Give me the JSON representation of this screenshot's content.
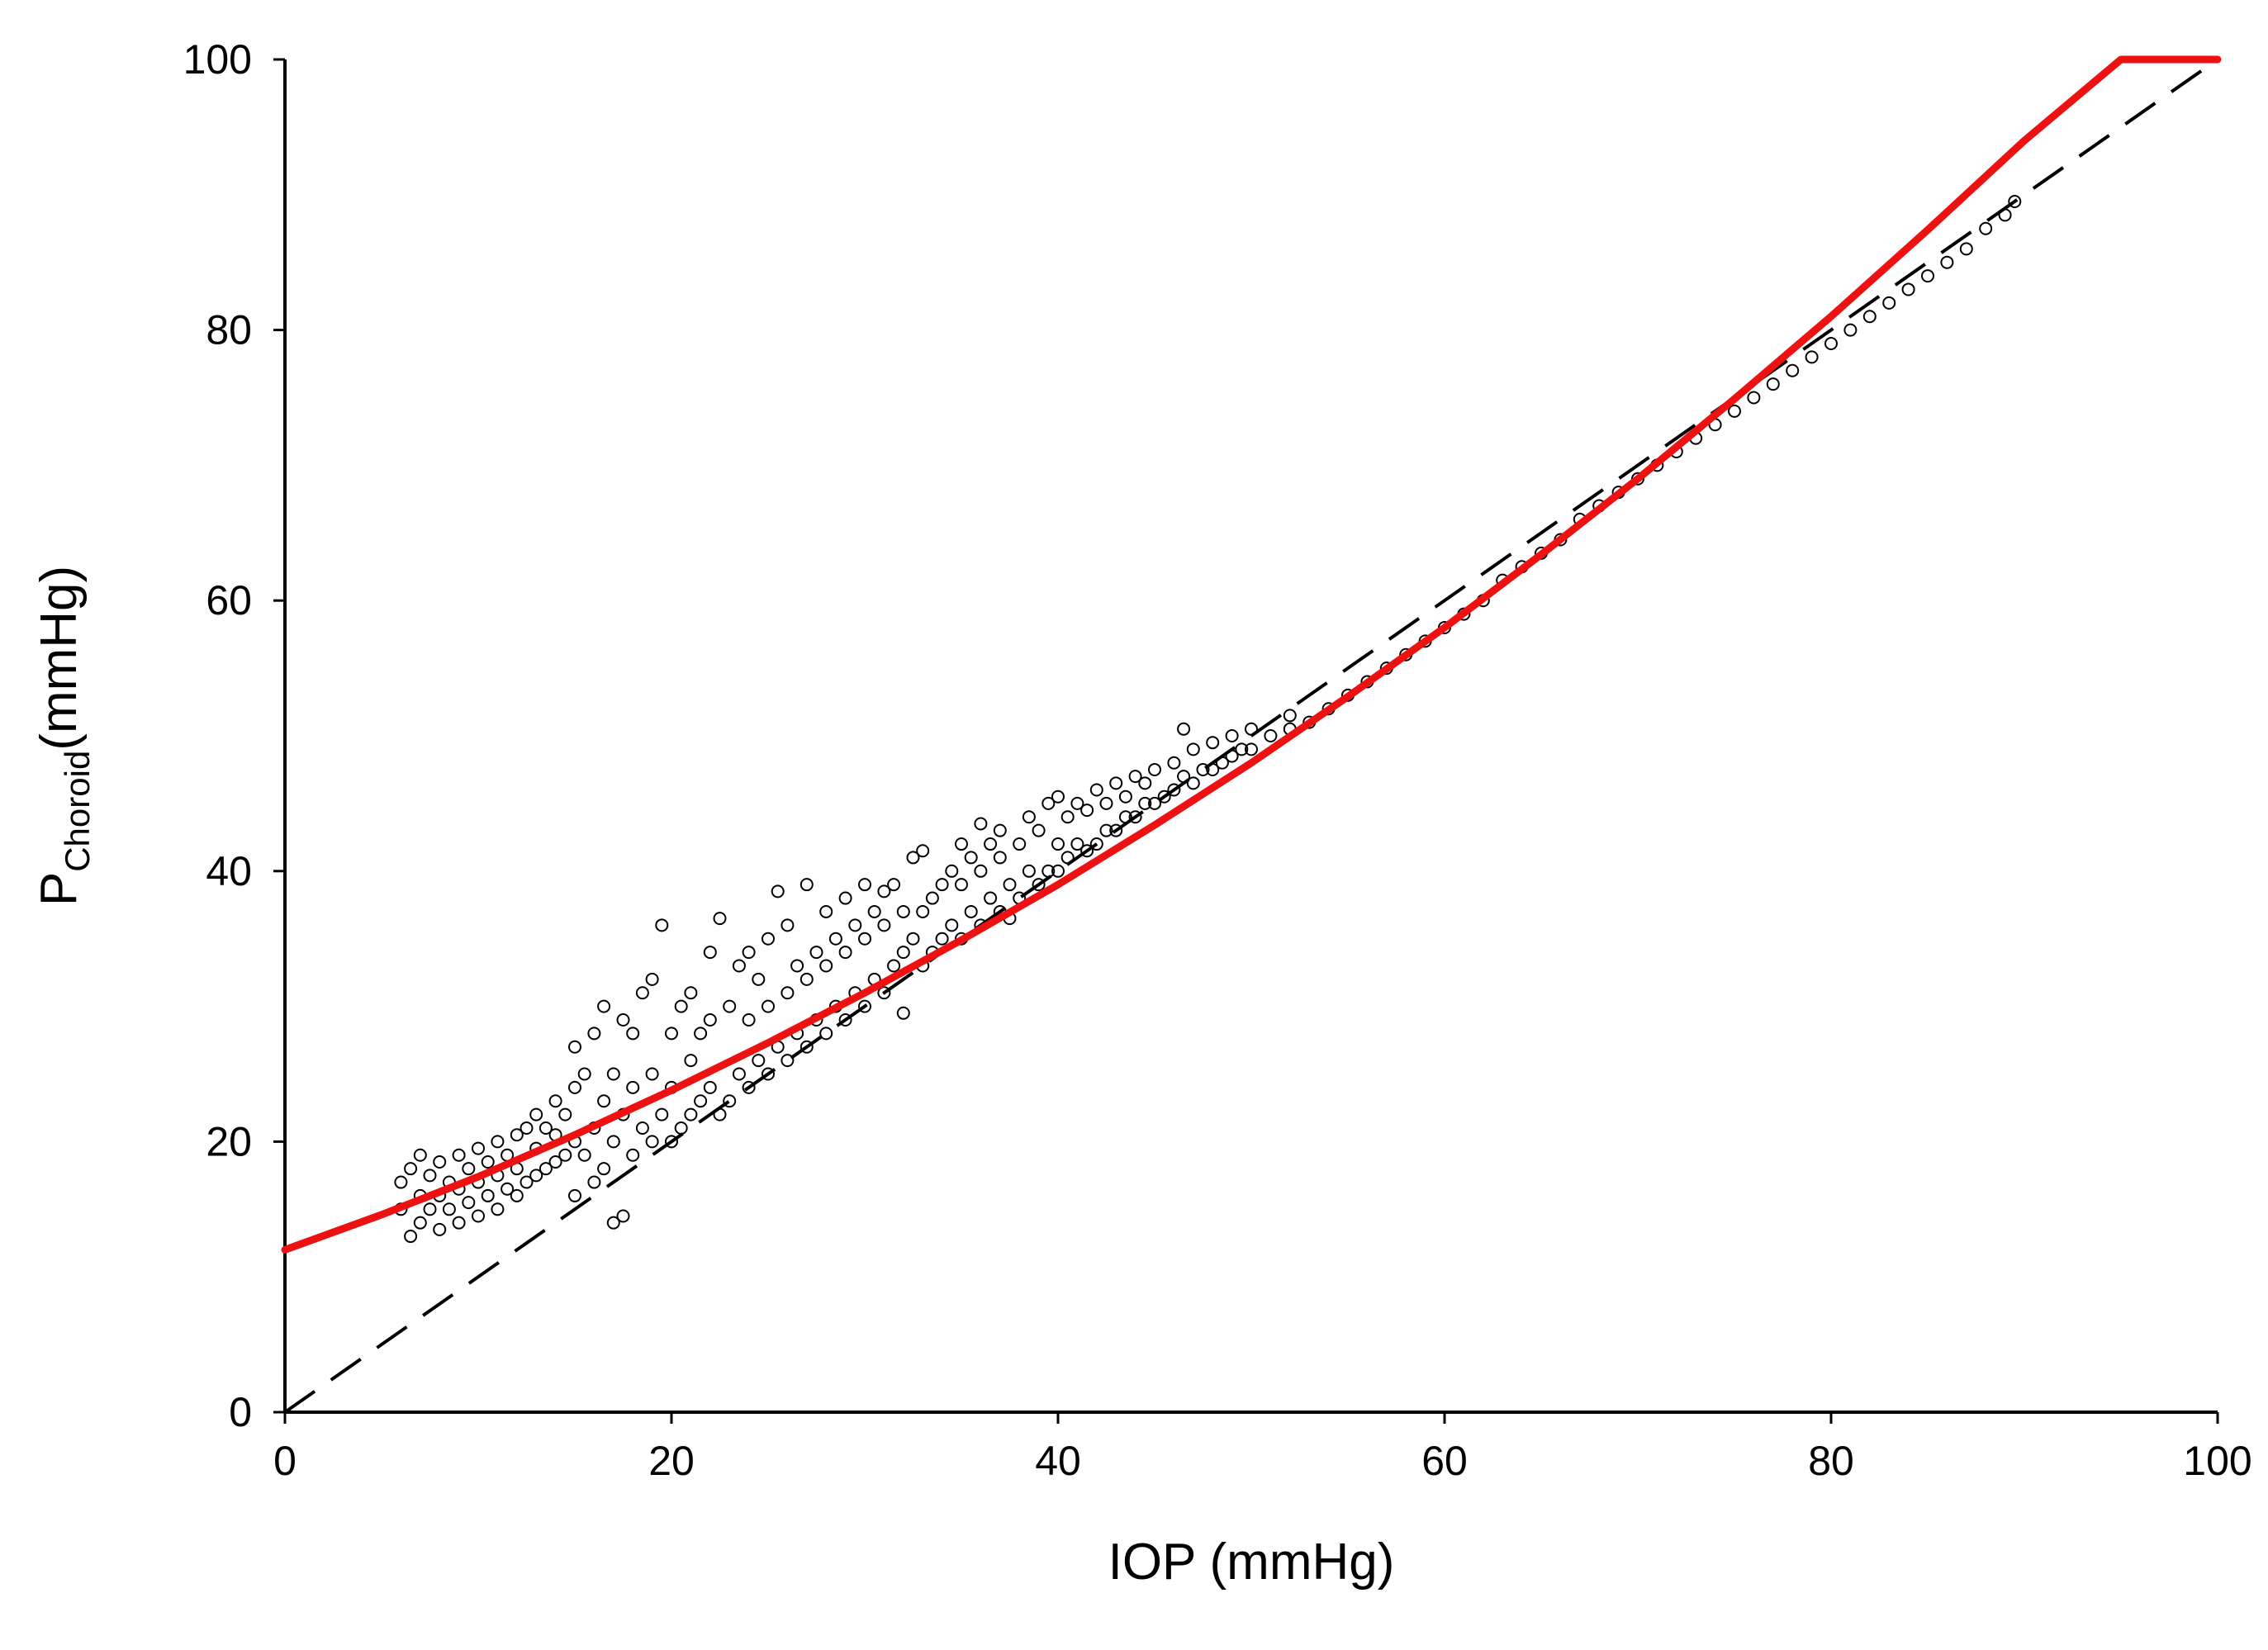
{
  "chart_data": {
    "type": "scatter",
    "title": "",
    "xlabel": "IOP (mmHg)",
    "ylabel": {
      "main": "P",
      "subscript": "Choroid",
      "suffix": "(mmHg)"
    },
    "xlim": [
      0,
      100
    ],
    "ylim": [
      0,
      100
    ],
    "x_ticks": [
      "0",
      "20",
      "40",
      "60",
      "80",
      "100"
    ],
    "y_ticks": [
      "0",
      "20",
      "40",
      "60",
      "80",
      "100"
    ],
    "grid": false,
    "legend": "none",
    "colors": {
      "scatter": "#000000",
      "fit_line": "#ee1111",
      "reference_line": "#000000"
    },
    "series": [
      {
        "kind": "scatter",
        "points": [
          [
            6,
            15
          ],
          [
            6,
            17
          ],
          [
            6.5,
            13
          ],
          [
            6.5,
            18
          ],
          [
            7,
            14
          ],
          [
            7,
            16
          ],
          [
            7,
            19
          ],
          [
            7.5,
            15
          ],
          [
            7.5,
            17.5
          ],
          [
            8,
            13.5
          ],
          [
            8,
            16
          ],
          [
            8,
            18.5
          ],
          [
            8.5,
            15
          ],
          [
            8.5,
            17
          ],
          [
            9,
            14
          ],
          [
            9,
            16.5
          ],
          [
            9,
            19
          ],
          [
            9.5,
            15.5
          ],
          [
            9.5,
            18
          ],
          [
            10,
            14.5
          ],
          [
            10,
            17
          ],
          [
            10,
            19.5
          ],
          [
            10.5,
            16
          ],
          [
            10.5,
            18.5
          ],
          [
            11,
            15
          ],
          [
            11,
            17.5
          ],
          [
            11,
            20
          ],
          [
            11.5,
            16.5
          ],
          [
            11.5,
            19
          ],
          [
            12,
            16
          ],
          [
            12,
            18
          ],
          [
            12,
            20.5
          ],
          [
            12.5,
            17
          ],
          [
            12.5,
            21
          ],
          [
            13,
            17.5
          ],
          [
            13,
            19.5
          ],
          [
            13,
            22
          ],
          [
            13.5,
            18
          ],
          [
            13.5,
            21
          ],
          [
            14,
            18.5
          ],
          [
            14,
            20.5
          ],
          [
            14,
            23
          ],
          [
            14.5,
            19
          ],
          [
            14.5,
            22
          ],
          [
            15,
            16
          ],
          [
            15,
            20
          ],
          [
            15,
            24
          ],
          [
            15,
            27
          ],
          [
            15.5,
            19
          ],
          [
            15.5,
            25
          ],
          [
            16,
            17
          ],
          [
            16,
            21
          ],
          [
            16,
            28
          ],
          [
            16.5,
            18
          ],
          [
            16.5,
            23
          ],
          [
            16.5,
            30
          ],
          [
            17,
            14
          ],
          [
            17,
            20
          ],
          [
            17,
            25
          ],
          [
            17.5,
            14.5
          ],
          [
            17.5,
            22
          ],
          [
            17.5,
            29
          ],
          [
            18,
            19
          ],
          [
            18,
            24
          ],
          [
            18,
            28
          ],
          [
            18.5,
            21
          ],
          [
            18.5,
            31
          ],
          [
            19,
            20
          ],
          [
            19,
            25
          ],
          [
            19,
            32
          ],
          [
            19.5,
            22
          ],
          [
            19.5,
            36
          ],
          [
            20,
            20
          ],
          [
            20,
            24
          ],
          [
            20,
            28
          ],
          [
            20.5,
            21
          ],
          [
            20.5,
            30
          ],
          [
            21,
            22
          ],
          [
            21,
            26
          ],
          [
            21,
            31
          ],
          [
            21.5,
            23
          ],
          [
            21.5,
            28
          ],
          [
            22,
            24
          ],
          [
            22,
            29
          ],
          [
            22,
            34
          ],
          [
            22.5,
            22
          ],
          [
            22.5,
            36.5
          ],
          [
            23,
            23
          ],
          [
            23,
            30
          ],
          [
            23.5,
            25
          ],
          [
            23.5,
            33
          ],
          [
            24,
            24
          ],
          [
            24,
            29
          ],
          [
            24,
            34
          ],
          [
            24.5,
            26
          ],
          [
            24.5,
            32
          ],
          [
            25,
            25
          ],
          [
            25,
            30
          ],
          [
            25,
            35
          ],
          [
            25.5,
            27
          ],
          [
            25.5,
            38.5
          ],
          [
            26,
            26
          ],
          [
            26,
            31
          ],
          [
            26,
            36
          ],
          [
            26.5,
            28
          ],
          [
            26.5,
            33
          ],
          [
            27,
            27
          ],
          [
            27,
            32
          ],
          [
            27,
            39
          ],
          [
            27.5,
            29
          ],
          [
            27.5,
            34
          ],
          [
            28,
            28
          ],
          [
            28,
            33
          ],
          [
            28,
            37
          ],
          [
            28.5,
            30
          ],
          [
            28.5,
            35
          ],
          [
            29,
            29
          ],
          [
            29,
            34
          ],
          [
            29,
            38
          ],
          [
            29.5,
            31
          ],
          [
            29.5,
            36
          ],
          [
            30,
            30
          ],
          [
            30,
            35
          ],
          [
            30,
            39
          ],
          [
            30.5,
            32
          ],
          [
            30.5,
            37
          ],
          [
            31,
            31
          ],
          [
            31,
            36
          ],
          [
            31,
            38.5
          ],
          [
            31.5,
            33
          ],
          [
            31.5,
            39
          ],
          [
            32,
            29.5
          ],
          [
            32,
            34
          ],
          [
            32,
            37
          ],
          [
            32.5,
            35
          ],
          [
            32.5,
            41
          ],
          [
            33,
            33
          ],
          [
            33,
            37
          ],
          [
            33,
            41.5
          ],
          [
            33.5,
            34
          ],
          [
            33.5,
            38
          ],
          [
            34,
            35
          ],
          [
            34,
            39
          ],
          [
            34.5,
            36
          ],
          [
            34.5,
            40
          ],
          [
            35,
            35
          ],
          [
            35,
            39
          ],
          [
            35,
            42
          ],
          [
            35.5,
            37
          ],
          [
            35.5,
            41
          ],
          [
            36,
            36
          ],
          [
            36,
            40
          ],
          [
            36,
            43.5
          ],
          [
            36.5,
            38
          ],
          [
            36.5,
            42
          ],
          [
            37,
            37
          ],
          [
            37,
            41
          ],
          [
            37,
            43
          ],
          [
            37.5,
            39
          ],
          [
            37.5,
            36.5
          ],
          [
            38,
            38
          ],
          [
            38,
            42
          ],
          [
            38.5,
            40
          ],
          [
            38.5,
            44
          ],
          [
            39,
            39
          ],
          [
            39,
            43
          ],
          [
            39.5,
            40
          ],
          [
            39.5,
            45
          ],
          [
            40,
            40
          ],
          [
            40,
            42
          ],
          [
            40,
            45.5
          ],
          [
            40.5,
            41
          ],
          [
            40.5,
            44
          ],
          [
            41,
            42
          ],
          [
            41,
            45
          ],
          [
            41.5,
            41.5
          ],
          [
            41.5,
            44.5
          ],
          [
            42,
            42
          ],
          [
            42,
            46
          ],
          [
            42.5,
            43
          ],
          [
            42.5,
            45
          ],
          [
            43,
            43
          ],
          [
            43,
            46.5
          ],
          [
            43.5,
            44
          ],
          [
            43.5,
            45.5
          ],
          [
            44,
            44
          ],
          [
            44,
            47
          ],
          [
            44.5,
            45
          ],
          [
            44.5,
            46.5
          ],
          [
            45,
            45
          ],
          [
            45,
            47.5
          ],
          [
            45.5,
            45.5
          ],
          [
            46,
            46
          ],
          [
            46,
            48
          ],
          [
            46.5,
            47
          ],
          [
            46.5,
            50.5
          ],
          [
            47,
            46.5
          ],
          [
            47,
            49
          ],
          [
            47.5,
            47.5
          ],
          [
            48,
            47.5
          ],
          [
            48,
            49.5
          ],
          [
            48.5,
            48
          ],
          [
            49,
            48.5
          ],
          [
            49,
            50
          ],
          [
            49.5,
            49
          ],
          [
            50,
            49
          ],
          [
            50,
            50.5
          ],
          [
            51,
            50
          ],
          [
            52,
            50.5
          ],
          [
            52,
            51.5
          ],
          [
            53,
            51
          ],
          [
            54,
            52
          ],
          [
            55,
            53
          ],
          [
            56,
            54
          ],
          [
            57,
            55
          ],
          [
            58,
            56
          ],
          [
            59,
            57
          ],
          [
            60,
            58
          ],
          [
            61,
            59
          ],
          [
            62,
            60
          ],
          [
            63,
            61.5
          ],
          [
            64,
            62.5
          ],
          [
            65,
            63.5
          ],
          [
            66,
            64.5
          ],
          [
            67,
            66
          ],
          [
            68,
            67
          ],
          [
            69,
            68
          ],
          [
            70,
            69
          ],
          [
            71,
            70
          ],
          [
            72,
            71
          ],
          [
            73,
            72
          ],
          [
            74,
            73
          ],
          [
            75,
            74
          ],
          [
            76,
            75
          ],
          [
            77,
            76
          ],
          [
            78,
            77
          ],
          [
            79,
            78
          ],
          [
            80,
            79
          ],
          [
            81,
            80
          ],
          [
            82,
            81
          ],
          [
            83,
            82
          ],
          [
            84,
            83
          ],
          [
            85,
            84
          ],
          [
            86,
            85
          ],
          [
            87,
            86
          ],
          [
            88,
            87.5
          ],
          [
            89,
            88.5
          ],
          [
            89.5,
            89.5
          ]
        ]
      },
      {
        "kind": "fit-curve",
        "points": [
          [
            0,
            12
          ],
          [
            5,
            14.6
          ],
          [
            10,
            17.4
          ],
          [
            15,
            20.5
          ],
          [
            20,
            23.8
          ],
          [
            25,
            27.3
          ],
          [
            30,
            31
          ],
          [
            35,
            34.9
          ],
          [
            40,
            39
          ],
          [
            45,
            43.4
          ],
          [
            50,
            48
          ],
          [
            55,
            52.9
          ],
          [
            60,
            58
          ],
          [
            65,
            63.4
          ],
          [
            70,
            69
          ],
          [
            75,
            74.9
          ],
          [
            80,
            81
          ],
          [
            85,
            87.4
          ],
          [
            90,
            94
          ],
          [
            95,
            100.9
          ],
          [
            100,
            100
          ]
        ]
      },
      {
        "kind": "reference-line",
        "dashed": true,
        "points": [
          [
            0,
            0
          ],
          [
            100,
            100
          ]
        ]
      }
    ]
  }
}
